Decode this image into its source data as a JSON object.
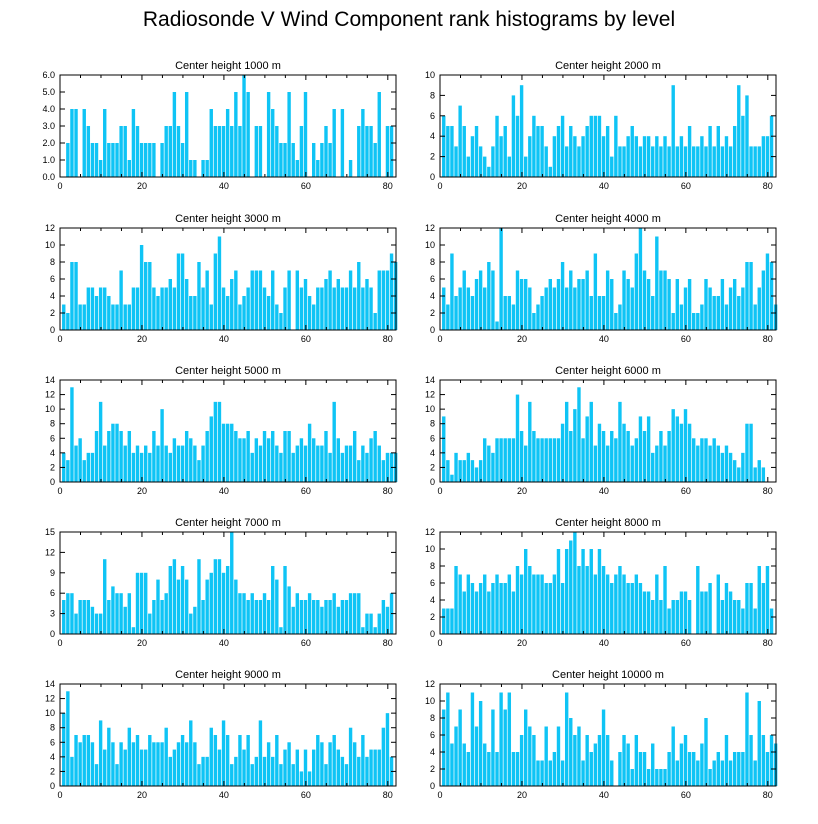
{
  "figure": {
    "title": "Radiosonde V Wind Component rank histograms by level",
    "bar_color": "#0FC4F5",
    "x_ticks": [
      0,
      20,
      40,
      60,
      80
    ]
  },
  "chart_data": [
    {
      "type": "bar",
      "title": "Center height 1000 m",
      "xlim": [
        0,
        82
      ],
      "ylim": [
        0,
        6
      ],
      "y_ticks": [
        0,
        1,
        2,
        3,
        4,
        5,
        6
      ],
      "y_tick_labels": [
        "0.0",
        "1.0",
        "2.0",
        "3.0",
        "4.0",
        "5.0",
        "6.0"
      ],
      "values": [
        0,
        2,
        4,
        4,
        0,
        4,
        3,
        2,
        2,
        1,
        4,
        2,
        2,
        2,
        3,
        3,
        1,
        4,
        3,
        2,
        2,
        2,
        2,
        0,
        2,
        3,
        3,
        5,
        3,
        2,
        5,
        1,
        1,
        0,
        1,
        1,
        4,
        3,
        3,
        3,
        4,
        3,
        5,
        3,
        6,
        5,
        0,
        3,
        3,
        0,
        5,
        4,
        3,
        2,
        2,
        5,
        2,
        1,
        3,
        5,
        0,
        2,
        1,
        2,
        3,
        2,
        4,
        0,
        4,
        0,
        1,
        0,
        3,
        4,
        3,
        3,
        2,
        5,
        0,
        3,
        3
      ]
    },
    {
      "type": "bar",
      "title": "Center height 2000 m",
      "xlim": [
        0,
        82
      ],
      "ylim": [
        0,
        10
      ],
      "y_ticks": [
        0,
        2,
        4,
        6,
        8,
        10
      ],
      "y_tick_labels": [
        "0",
        "2",
        "4",
        "6",
        "8",
        "10"
      ],
      "values": [
        6,
        5,
        5,
        3,
        7,
        5,
        2,
        4,
        5,
        3,
        2,
        1,
        3,
        6,
        4,
        5,
        2,
        8,
        6,
        9,
        2,
        4,
        6,
        5,
        5,
        3,
        1,
        4,
        5,
        6,
        3,
        5,
        4,
        3,
        4,
        5,
        6,
        6,
        6,
        4,
        5,
        2,
        6,
        3,
        3,
        4,
        5,
        4,
        3,
        4,
        4,
        3,
        4,
        3,
        4,
        3,
        9,
        3,
        4,
        3,
        5,
        3,
        3,
        4,
        3,
        5,
        3,
        5,
        3,
        4,
        3,
        5,
        9,
        6,
        8,
        3,
        3,
        3,
        4,
        4,
        6
      ]
    },
    {
      "type": "bar",
      "title": "Center height 3000 m",
      "xlim": [
        0,
        82
      ],
      "ylim": [
        0,
        12
      ],
      "y_ticks": [
        0,
        2,
        4,
        6,
        8,
        10,
        12
      ],
      "y_tick_labels": [
        "0",
        "2",
        "4",
        "6",
        "8",
        "10",
        "12"
      ],
      "values": [
        3,
        2,
        8,
        8,
        3,
        3,
        5,
        5,
        4,
        5,
        5,
        4,
        3,
        3,
        7,
        3,
        3,
        5,
        5,
        10,
        8,
        8,
        5,
        4,
        5,
        5,
        6,
        5,
        9,
        9,
        6,
        4,
        4,
        8,
        5,
        7,
        3,
        9,
        11,
        5,
        4,
        6,
        7,
        3,
        4,
        5,
        7,
        7,
        7,
        5,
        4,
        7,
        3,
        2,
        5,
        7,
        0,
        7,
        5,
        6,
        4,
        3,
        5,
        5,
        6,
        7,
        5,
        6,
        5,
        5,
        7,
        5,
        8,
        5,
        6,
        5,
        2,
        7,
        7,
        7,
        9,
        8
      ]
    },
    {
      "type": "bar",
      "title": "Center height 4000 m",
      "xlim": [
        0,
        82
      ],
      "ylim": [
        0,
        12
      ],
      "y_ticks": [
        0,
        2,
        4,
        6,
        8,
        10,
        12
      ],
      "y_tick_labels": [
        "0",
        "2",
        "4",
        "6",
        "8",
        "10",
        "12"
      ],
      "values": [
        5,
        3,
        9,
        4,
        5,
        7,
        5,
        4,
        6,
        7,
        5,
        8,
        7,
        1,
        12,
        4,
        4,
        3,
        7,
        6,
        6,
        5,
        2,
        3,
        4,
        5,
        6,
        5,
        6,
        8,
        5,
        7,
        5,
        6,
        6,
        7,
        4,
        9,
        4,
        4,
        7,
        6,
        2,
        3,
        7,
        6,
        5,
        9,
        12,
        7,
        6,
        4,
        11,
        7,
        7,
        6,
        2,
        6,
        3,
        5,
        6,
        2,
        2,
        3,
        6,
        5,
        4,
        4,
        6,
        3,
        5,
        6,
        4,
        5,
        8,
        8,
        3,
        5,
        7,
        9,
        8,
        3
      ]
    },
    {
      "type": "bar",
      "title": "Center height 5000 m",
      "xlim": [
        0,
        82
      ],
      "ylim": [
        0,
        14
      ],
      "y_ticks": [
        0,
        2,
        4,
        6,
        8,
        10,
        12,
        14
      ],
      "y_tick_labels": [
        "0",
        "2",
        "4",
        "6",
        "8",
        "10",
        "12",
        "14"
      ],
      "values": [
        4,
        3,
        13,
        5,
        6,
        3,
        4,
        4,
        7,
        11,
        5,
        7,
        8,
        8,
        7,
        5,
        7,
        4,
        5,
        4,
        5,
        4,
        7,
        5,
        10,
        5,
        4,
        6,
        5,
        5,
        7,
        6,
        5,
        3,
        5,
        7,
        9,
        11,
        11,
        8,
        8,
        8,
        7,
        6,
        6,
        7,
        4,
        6,
        5,
        7,
        6,
        7,
        5,
        4,
        7,
        7,
        4,
        5,
        6,
        5,
        8,
        6,
        5,
        5,
        7,
        4,
        11,
        6,
        4,
        5,
        5,
        7,
        3,
        5,
        4,
        6,
        7,
        5,
        3,
        4,
        4,
        4
      ]
    },
    {
      "type": "bar",
      "title": "Center height 6000 m",
      "xlim": [
        0,
        82
      ],
      "ylim": [
        0,
        14
      ],
      "y_ticks": [
        0,
        2,
        4,
        6,
        8,
        10,
        12,
        14
      ],
      "y_tick_labels": [
        "0",
        "2",
        "4",
        "6",
        "8",
        "10",
        "12",
        "14"
      ],
      "values": [
        9,
        3,
        1,
        4,
        3,
        3,
        4,
        3,
        2,
        3,
        6,
        5,
        4,
        6,
        6,
        6,
        6,
        6,
        12,
        7,
        5,
        11,
        7,
        6,
        6,
        6,
        6,
        6,
        6,
        8,
        11,
        7,
        10,
        13,
        6,
        9,
        11,
        5,
        8,
        7,
        5,
        7,
        6,
        11,
        8,
        7,
        5,
        6,
        9,
        7,
        9,
        4,
        5,
        7,
        5,
        7,
        10,
        9,
        8,
        10,
        8,
        6,
        5,
        6,
        6,
        5,
        6,
        5,
        4,
        5,
        4,
        3,
        2,
        4,
        8,
        8,
        2,
        3,
        2
      ]
    },
    {
      "type": "bar",
      "title": "Center height 7000 m",
      "xlim": [
        0,
        82
      ],
      "ylim": [
        0,
        15
      ],
      "y_ticks": [
        0,
        3,
        6,
        9,
        12,
        15
      ],
      "y_tick_labels": [
        "0",
        "3",
        "6",
        "9",
        "12",
        "15"
      ],
      "values": [
        5,
        6,
        6,
        3,
        5,
        5,
        5,
        4,
        3,
        3,
        11,
        5,
        7,
        6,
        6,
        4,
        6,
        1,
        9,
        9,
        9,
        3,
        5,
        8,
        5,
        6,
        10,
        11,
        8,
        10,
        8,
        3,
        4,
        11,
        5,
        8,
        9,
        11,
        11,
        9,
        10,
        15,
        8,
        6,
        6,
        5,
        6,
        5,
        5,
        6,
        5,
        10,
        8,
        1,
        10,
        7,
        4,
        6,
        5,
        5,
        6,
        5,
        5,
        4,
        5,
        5,
        6,
        4,
        5,
        5,
        6,
        6,
        6,
        1,
        3,
        3,
        1,
        3,
        5,
        4,
        6
      ]
    },
    {
      "type": "bar",
      "title": "Center height 8000 m",
      "xlim": [
        0,
        82
      ],
      "ylim": [
        0,
        12
      ],
      "y_ticks": [
        0,
        2,
        4,
        6,
        8,
        10,
        12
      ],
      "y_tick_labels": [
        "0",
        "2",
        "4",
        "6",
        "8",
        "10",
        "12"
      ],
      "values": [
        3,
        3,
        3,
        8,
        7,
        5,
        7,
        6,
        5,
        6,
        7,
        5,
        6,
        7,
        6,
        6,
        7,
        5,
        8,
        7,
        10,
        8,
        7,
        7,
        7,
        6,
        6,
        7,
        10,
        6,
        10,
        11,
        12,
        8,
        10,
        8,
        10,
        7,
        10,
        8,
        7,
        6,
        7,
        8,
        7,
        6,
        6,
        7,
        6,
        5,
        5,
        4,
        7,
        4,
        8,
        3,
        4,
        4,
        5,
        5,
        4,
        0,
        8,
        5,
        5,
        6,
        0,
        7,
        4,
        6,
        5,
        4,
        4,
        3,
        6,
        6,
        3,
        8,
        6,
        8,
        3
      ]
    },
    {
      "type": "bar",
      "title": "Center height 9000 m",
      "xlim": [
        0,
        82
      ],
      "ylim": [
        0,
        14
      ],
      "y_ticks": [
        0,
        2,
        4,
        6,
        8,
        10,
        12,
        14
      ],
      "y_tick_labels": [
        "0",
        "2",
        "4",
        "6",
        "8",
        "10",
        "12",
        "14"
      ],
      "values": [
        10,
        13,
        4,
        7,
        6,
        7,
        7,
        6,
        3,
        9,
        5,
        8,
        6,
        3,
        6,
        5,
        8,
        6,
        7,
        5,
        5,
        7,
        6,
        6,
        6,
        8,
        4,
        5,
        6,
        7,
        6,
        9,
        6,
        3,
        4,
        4,
        8,
        7,
        5,
        9,
        7,
        3,
        4,
        7,
        5,
        7,
        3,
        4,
        9,
        4,
        6,
        4,
        7,
        3,
        5,
        6,
        3,
        5,
        2,
        5,
        2,
        5,
        7,
        6,
        3,
        6,
        7,
        5,
        4,
        3,
        8,
        6,
        4,
        7,
        4,
        5,
        5,
        5,
        8,
        10,
        4
      ]
    },
    {
      "type": "bar",
      "title": "Center height 10000 m",
      "xlim": [
        0,
        82
      ],
      "ylim": [
        0,
        12
      ],
      "y_ticks": [
        0,
        2,
        4,
        6,
        8,
        10,
        12
      ],
      "y_tick_labels": [
        "0",
        "2",
        "4",
        "6",
        "8",
        "10",
        "12"
      ],
      "values": [
        9,
        11,
        5,
        7,
        9,
        5,
        4,
        11,
        7,
        10,
        5,
        4,
        9,
        4,
        11,
        9,
        11,
        4,
        4,
        6,
        9,
        7,
        6,
        3,
        3,
        7,
        3,
        4,
        7,
        3,
        11,
        8,
        6,
        7,
        3,
        6,
        4,
        5,
        6,
        9,
        6,
        3,
        0,
        4,
        6,
        5,
        2,
        6,
        4,
        4,
        2,
        5,
        2,
        2,
        2,
        4,
        7,
        3,
        5,
        6,
        4,
        4,
        3,
        5,
        8,
        2,
        3,
        4,
        3,
        6,
        3,
        4,
        4,
        4,
        11,
        6,
        3,
        10,
        6,
        4,
        6,
        5
      ]
    }
  ]
}
